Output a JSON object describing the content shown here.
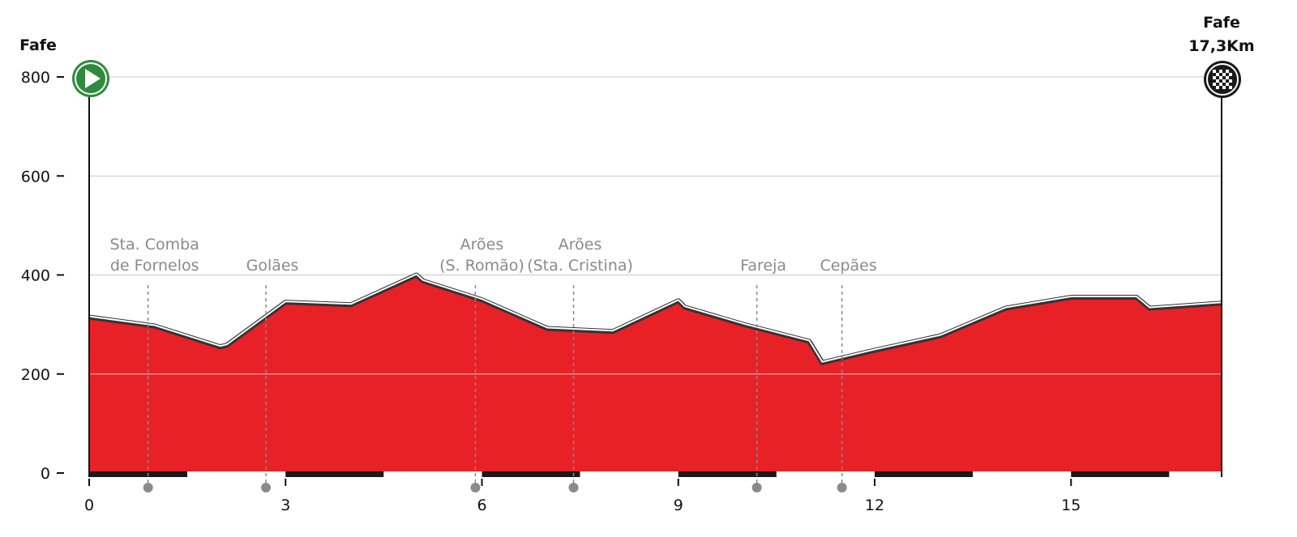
{
  "chart_data": {
    "type": "area",
    "title": "",
    "xlabel": "",
    "ylabel": "",
    "x_unit": "km",
    "y_unit": "m",
    "xlim": [
      0,
      17.3
    ],
    "ylim": [
      0,
      800
    ],
    "xticks": [
      0,
      3,
      6,
      9,
      12,
      15
    ],
    "yticks": [
      0,
      200,
      400,
      600,
      800
    ],
    "grid": "horizontal",
    "series": [
      {
        "x": [
          0,
          1,
          2,
          2.1,
          3,
          4,
          5,
          5.1,
          6,
          7,
          8,
          9,
          9.1,
          10,
          11,
          11.2,
          12,
          13,
          14,
          15,
          16,
          16.2,
          17.3
        ],
        "values": [
          315,
          297,
          255,
          258,
          345,
          340,
          400,
          388,
          350,
          292,
          286,
          348,
          335,
          300,
          266,
          223,
          248,
          277,
          333,
          355,
          355,
          333,
          343
        ]
      }
    ],
    "places": [
      {
        "km": 0.9,
        "label": "Sta. Comba\nde Fornelos"
      },
      {
        "km": 2.7,
        "label": "Golães"
      },
      {
        "km": 5.9,
        "label": "Arões\n(S. Romão)"
      },
      {
        "km": 7.4,
        "label": "Arões\n(Sta. Cristina)"
      },
      {
        "km": 10.2,
        "label": "Fareja"
      },
      {
        "km": 11.5,
        "label": "Cepães"
      }
    ],
    "start": {
      "label": "Fafe",
      "icon": "start-flag-icon"
    },
    "finish": {
      "label": "Fafe",
      "distance": "17,3Km",
      "icon": "finish-flag-icon"
    },
    "colors": {
      "fill": "#e82127",
      "outline": "#333333",
      "start": "#2e8b3e",
      "finish": "#1a1a1a",
      "grid": "#c8c8c8",
      "place_line": "#8a8a8a"
    }
  }
}
